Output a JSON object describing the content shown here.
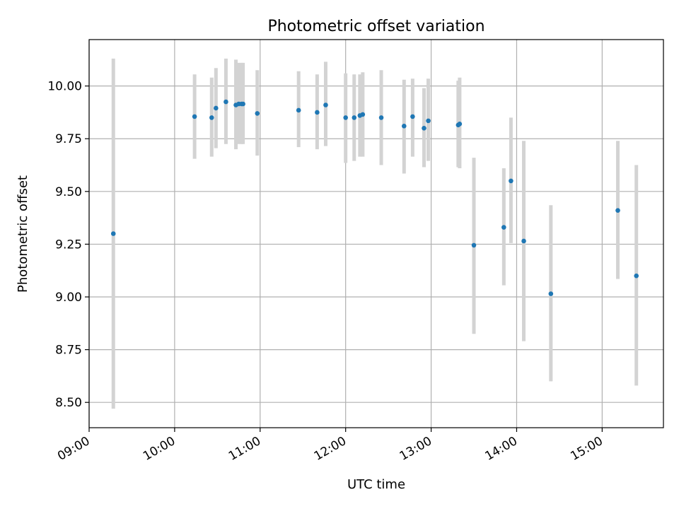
{
  "chart_data": {
    "type": "scatter",
    "title": "Photometric offset variation",
    "xlabel": "UTC time",
    "ylabel": "Photometric offset",
    "x_is_time": true,
    "xlim": [
      "09:00",
      "15:43"
    ],
    "ylim": [
      8.38,
      10.22
    ],
    "x_ticks": [
      "09:00",
      "10:00",
      "11:00",
      "12:00",
      "13:00",
      "14:00",
      "15:00"
    ],
    "y_ticks": [
      "8.50",
      "8.75",
      "9.00",
      "9.25",
      "9.50",
      "9.75",
      "10.00"
    ],
    "grid": true,
    "colors": {
      "points": "#1f77b4",
      "errorbars": "#d3d3d3",
      "grid": "#b0b0b0"
    },
    "series": [
      {
        "x": [
          "09:17",
          "10:14",
          "10:26",
          "10:29",
          "10:36",
          "10:43",
          "10:45",
          "10:47",
          "10:48",
          "10:58",
          "11:27",
          "11:40",
          "11:46",
          "12:00",
          "12:06",
          "12:10",
          "12:12",
          "12:25",
          "12:41",
          "12:47",
          "12:55",
          "12:58",
          "13:19",
          "13:20",
          "13:30",
          "13:51",
          "13:56",
          "14:05",
          "14:24",
          "15:11",
          "15:24"
        ],
        "y": [
          9.3,
          9.855,
          9.85,
          9.895,
          9.925,
          9.91,
          9.915,
          9.915,
          9.915,
          9.87,
          9.885,
          9.875,
          9.91,
          9.85,
          9.85,
          9.86,
          9.865,
          9.85,
          9.81,
          9.855,
          9.8,
          9.835,
          9.815,
          9.82,
          9.245,
          9.33,
          9.55,
          9.265,
          9.015,
          9.41,
          9.1
        ],
        "y_low": [
          8.47,
          9.655,
          9.665,
          9.705,
          9.725,
          9.7,
          9.725,
          9.725,
          9.725,
          9.67,
          9.71,
          9.7,
          9.715,
          9.635,
          9.645,
          9.665,
          9.665,
          9.625,
          9.585,
          9.665,
          9.615,
          9.645,
          9.615,
          9.61,
          8.825,
          9.055,
          9.255,
          8.79,
          8.6,
          9.085,
          8.58
        ],
        "y_high": [
          10.13,
          10.055,
          10.04,
          10.085,
          10.13,
          10.125,
          10.11,
          10.11,
          10.11,
          10.075,
          10.07,
          10.055,
          10.115,
          10.06,
          10.055,
          10.055,
          10.065,
          10.075,
          10.03,
          10.035,
          9.99,
          10.035,
          10.025,
          10.04,
          9.66,
          9.61,
          9.85,
          9.74,
          9.435,
          9.74,
          9.625
        ]
      }
    ]
  }
}
